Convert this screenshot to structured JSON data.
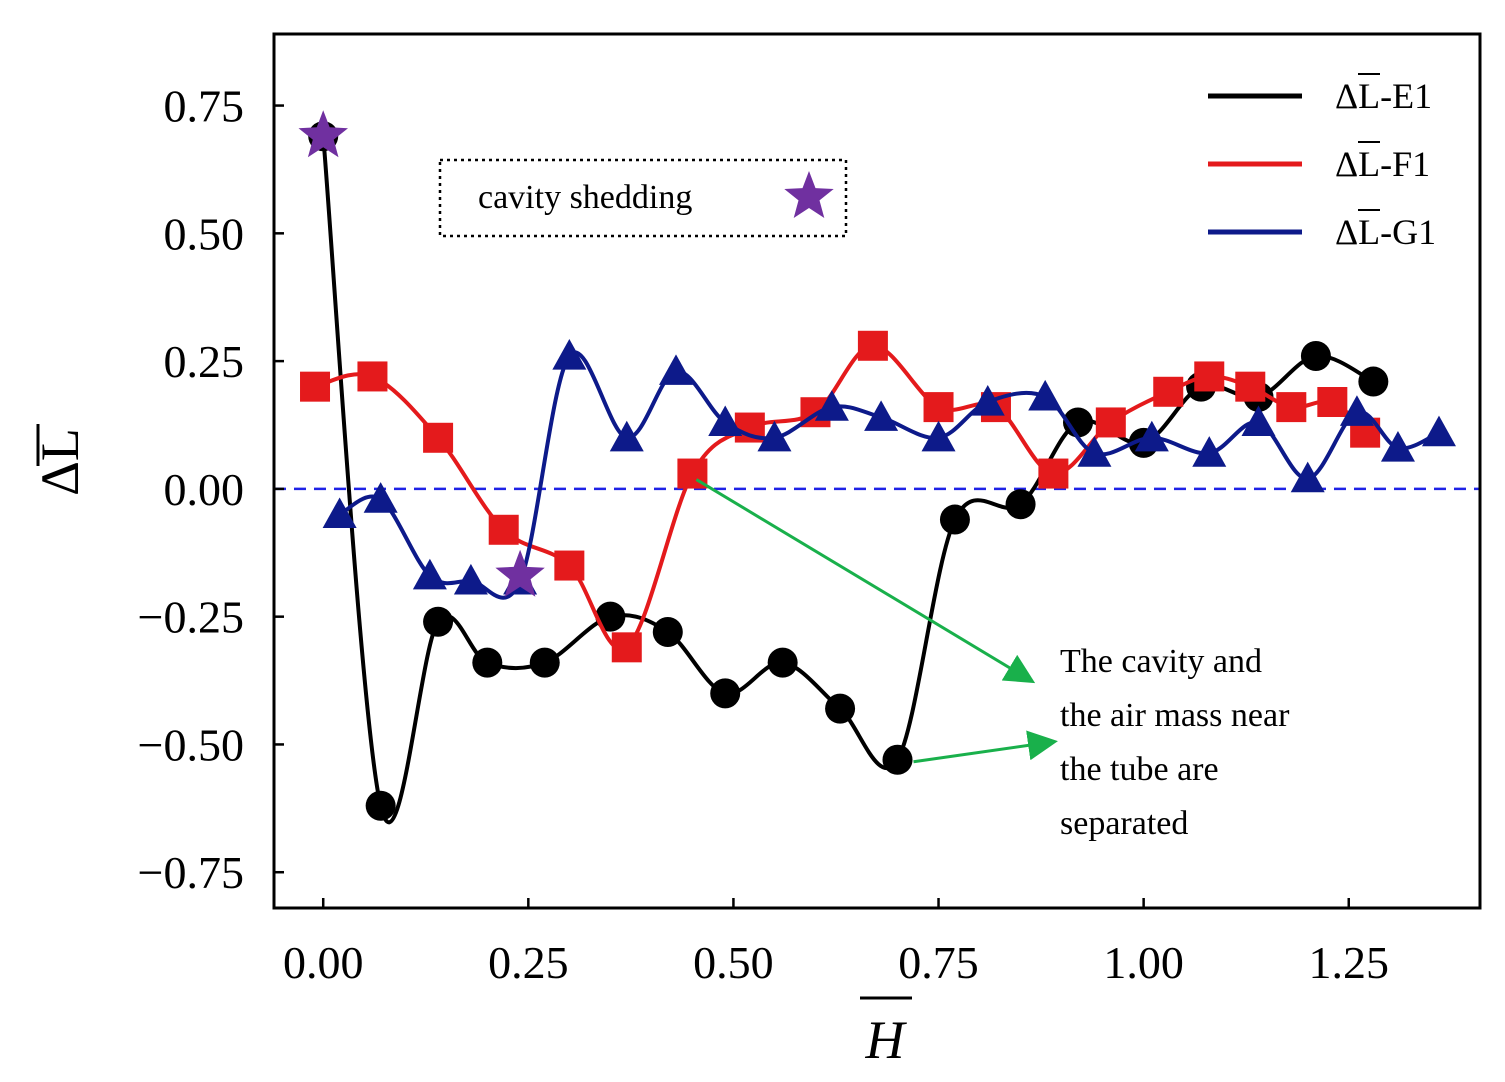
{
  "chart_data": {
    "type": "line",
    "xlabel": "H",
    "ylabel": "ΔL",
    "xlim": [
      -0.06,
      1.41
    ],
    "ylim": [
      -0.82,
      0.89
    ],
    "xticks": [
      0.0,
      0.25,
      0.5,
      0.75,
      1.0,
      1.25
    ],
    "xtick_labels": [
      "0.00",
      "0.25",
      "0.50",
      "0.75",
      "1.00",
      "1.25"
    ],
    "yticks": [
      0.75,
      0.5,
      0.25,
      0.0,
      -0.25,
      -0.5,
      -0.75
    ],
    "ytick_labels": [
      "0.75",
      "0.50",
      "0.25",
      "0.00",
      "−0.25",
      "−0.50",
      "−0.75"
    ],
    "zero_line": {
      "y": 0.0,
      "color": "#1f22e6",
      "style": "dashed"
    },
    "legend_position": "top-right",
    "series": [
      {
        "name": "ΔL-E1",
        "color": "#000000",
        "marker": "circle",
        "x": [
          0.0,
          0.07,
          0.14,
          0.2,
          0.27,
          0.35,
          0.42,
          0.49,
          0.56,
          0.63,
          0.7,
          0.77,
          0.85,
          0.92,
          1.0,
          1.07,
          1.14,
          1.21,
          1.28
        ],
        "y": [
          0.69,
          -0.62,
          -0.26,
          -0.34,
          -0.34,
          -0.25,
          -0.28,
          -0.4,
          -0.34,
          -0.43,
          -0.53,
          -0.06,
          -0.03,
          0.13,
          0.09,
          0.2,
          0.18,
          0.26,
          0.21
        ]
      },
      {
        "name": "ΔL-F1",
        "color": "#e41a1c",
        "marker": "square",
        "x": [
          -0.01,
          0.06,
          0.14,
          0.22,
          0.3,
          0.37,
          0.45,
          0.52,
          0.6,
          0.67,
          0.75,
          0.82,
          0.89,
          0.96,
          1.03,
          1.08,
          1.13,
          1.18,
          1.23,
          1.27
        ],
        "y": [
          0.2,
          0.22,
          0.1,
          -0.08,
          -0.15,
          -0.31,
          0.03,
          0.12,
          0.15,
          0.28,
          0.16,
          0.16,
          0.03,
          0.13,
          0.19,
          0.22,
          0.2,
          0.16,
          0.17,
          0.11
        ]
      },
      {
        "name": "ΔL-G1",
        "color": "#0d1a8a",
        "marker": "triangle",
        "x": [
          0.02,
          0.07,
          0.13,
          0.18,
          0.24,
          0.3,
          0.37,
          0.43,
          0.49,
          0.55,
          0.62,
          0.68,
          0.75,
          0.81,
          0.88,
          0.94,
          1.01,
          1.08,
          1.14,
          1.2,
          1.26,
          1.31,
          1.36
        ],
        "y": [
          -0.05,
          -0.02,
          -0.17,
          -0.18,
          -0.18,
          0.26,
          0.1,
          0.23,
          0.13,
          0.1,
          0.16,
          0.14,
          0.1,
          0.17,
          0.18,
          0.07,
          0.1,
          0.07,
          0.13,
          0.02,
          0.15,
          0.08,
          0.11
        ]
      }
    ],
    "cavity_shedding_points": [
      {
        "x": 0.0,
        "y": 0.69
      },
      {
        "x": 0.24,
        "y": -0.17
      }
    ],
    "annotations": {
      "legend_box_text": "cavity shedding",
      "note_lines": [
        "The cavity and",
        "the air mass near",
        "the tube are",
        "separated"
      ],
      "arrow_color": "#19b04b",
      "star_color": "#7030a0"
    }
  }
}
